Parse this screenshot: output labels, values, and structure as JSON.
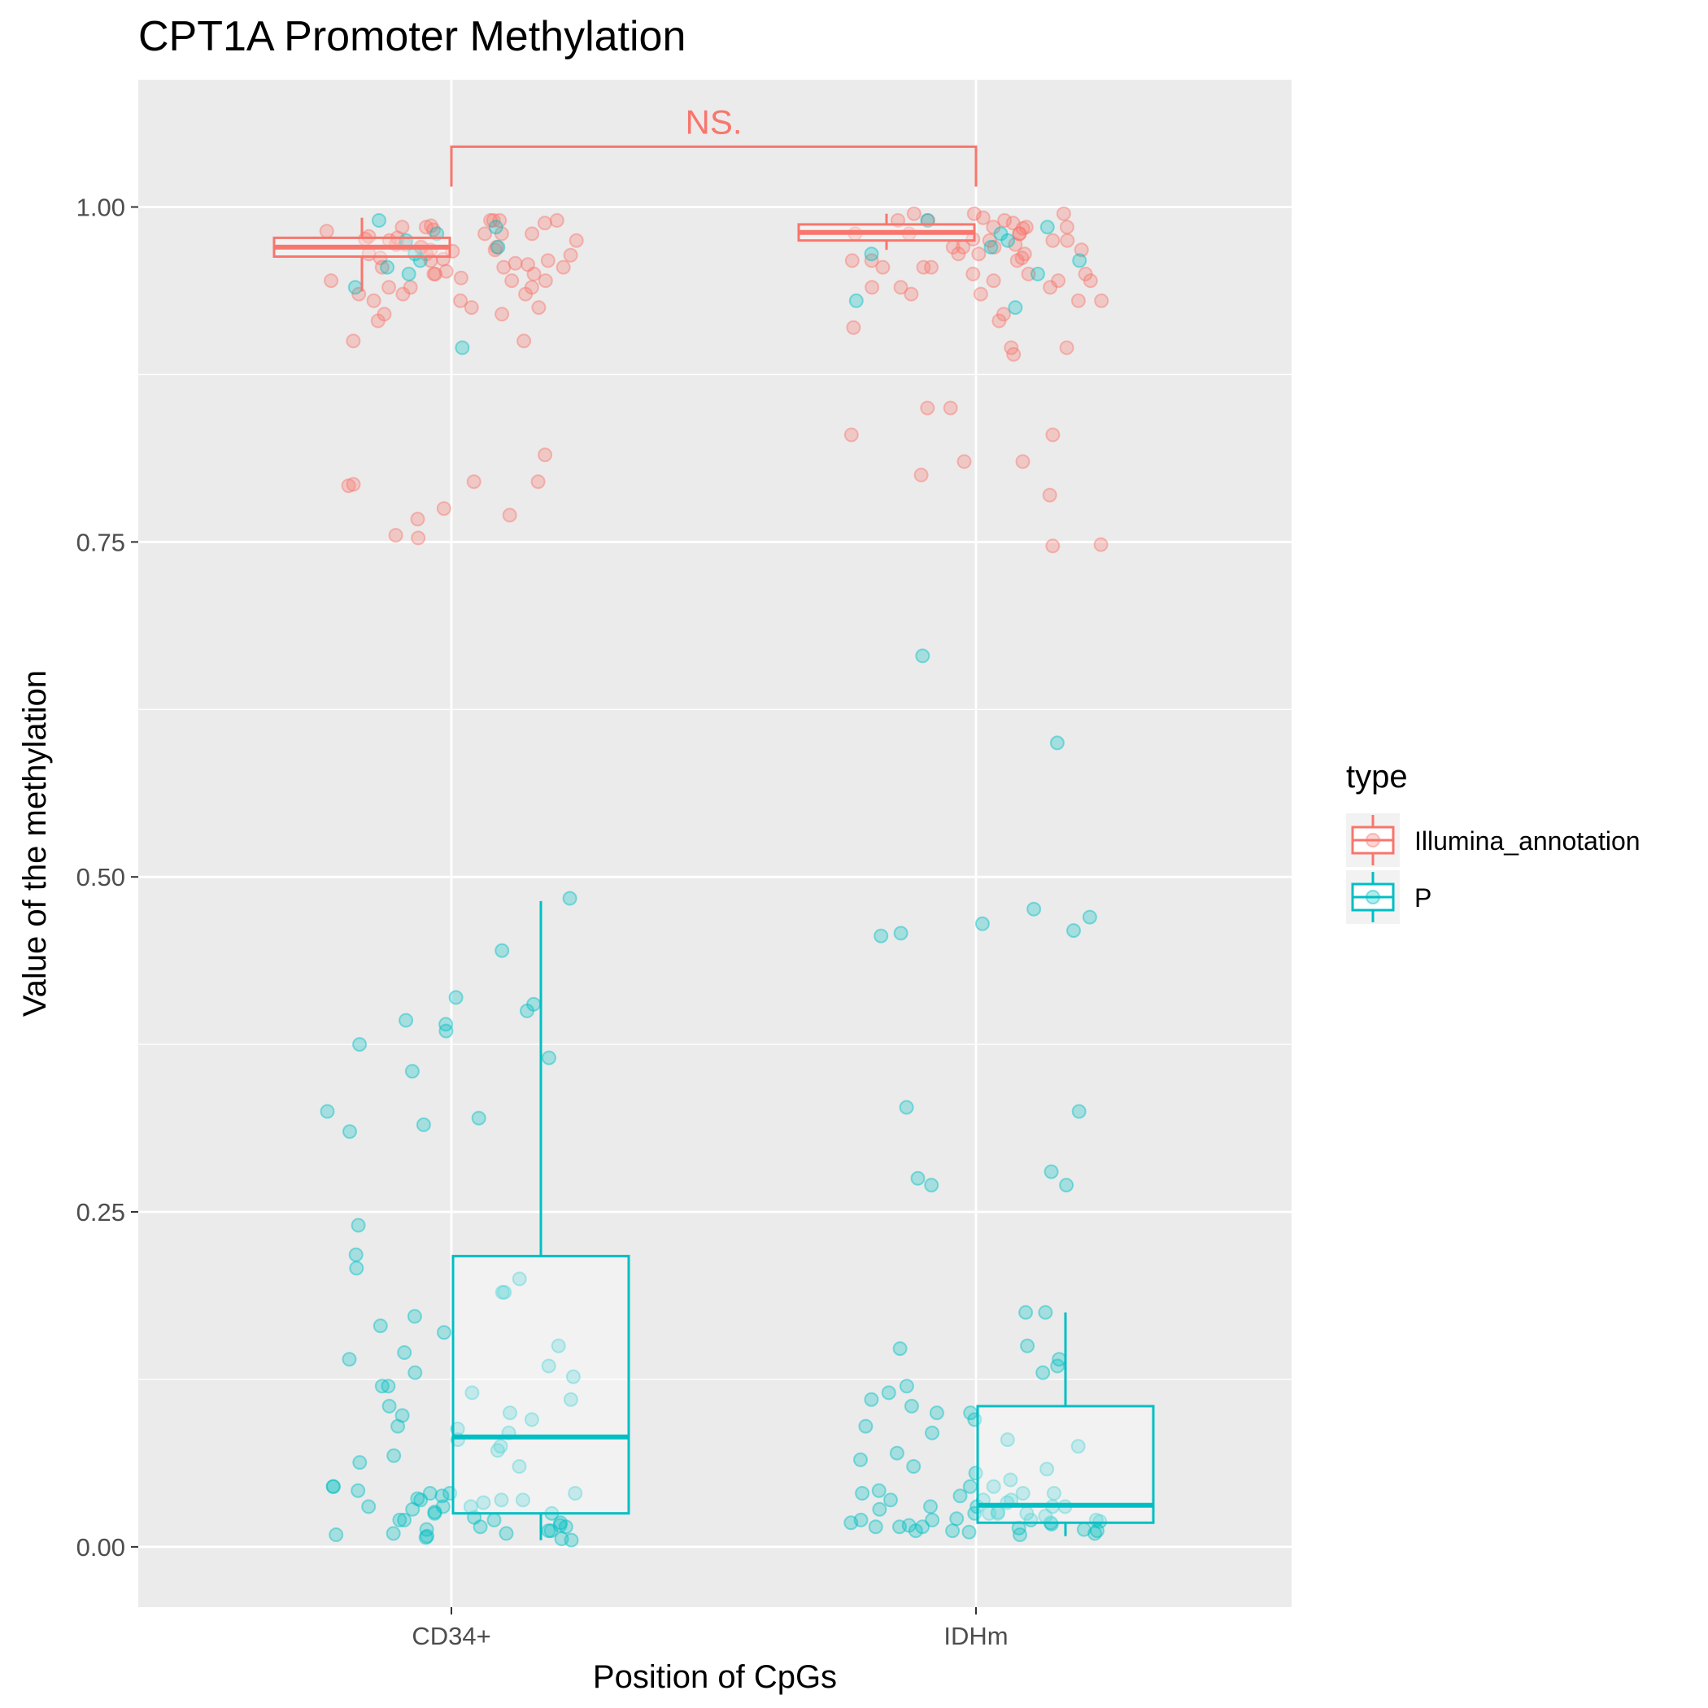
{
  "chart_data": {
    "type": "box",
    "title": "CPT1A Promoter Methylation",
    "xlabel": "Position of CpGs",
    "ylabel": "Value of the methylation",
    "categories": [
      "CD34+",
      "IDHm"
    ],
    "ylim": [
      -0.045,
      1.095
    ],
    "yticks": [
      0.0,
      0.25,
      0.5,
      0.75,
      1.0
    ],
    "ytick_labels": [
      "0.00",
      "0.25",
      "0.50",
      "0.75",
      "1.00"
    ],
    "grid": true,
    "legend": {
      "title": "type",
      "position": "right",
      "entries": [
        "Illumina_annotation",
        "P"
      ]
    },
    "colors": {
      "Illumina_annotation": "#F8766D",
      "P": "#00BFC4",
      "panel": "#EBEBEB",
      "grid": "#FFFFFF"
    },
    "series": [
      {
        "name": "Illumina_annotation",
        "boxes": [
          {
            "category": "CD34+",
            "q1": 0.963,
            "median": 0.97,
            "q3": 0.977,
            "whisker_low": 0.937,
            "whisker_high": 0.992
          },
          {
            "category": "IDHm",
            "q1": 0.975,
            "median": 0.981,
            "q3": 0.987,
            "whisker_low": 0.968,
            "whisker_high": 0.995
          }
        ],
        "points": {
          "CD34+": [
            0.99,
            0.985,
            0.98,
            0.975,
            0.97,
            0.968,
            0.965,
            0.96,
            0.955,
            0.95,
            0.945,
            0.94,
            0.935,
            0.93,
            0.925,
            0.92,
            0.915,
            0.9,
            0.815,
            0.795,
            0.793,
            0.775,
            0.77,
            0.767,
            0.755,
            0.753,
            0.99,
            0.988,
            0.986,
            0.983,
            0.98,
            0.978,
            0.976,
            0.972,
            0.97,
            0.967,
            0.964,
            0.961,
            0.958,
            0.955,
            0.95,
            0.945,
            0.94,
            0.935,
            0.93,
            0.925,
            0.92,
            0.9,
            0.795,
            0.792,
            0.99,
            0.985,
            0.98,
            0.975,
            0.97,
            0.965,
            0.96,
            0.955,
            0.95,
            0.945,
            0.94,
            0.935,
            0.99,
            0.982,
            0.977,
            0.972,
            0.968,
            0.962,
            0.957,
            0.952,
            0.947
          ],
          "IDHm": [
            0.995,
            0.99,
            0.985,
            0.98,
            0.975,
            0.97,
            0.965,
            0.96,
            0.955,
            0.95,
            0.945,
            0.94,
            0.935,
            0.93,
            0.92,
            0.91,
            0.895,
            0.89,
            0.85,
            0.83,
            0.81,
            0.8,
            0.785,
            0.748,
            0.995,
            0.99,
            0.985,
            0.98,
            0.975,
            0.97,
            0.965,
            0.96,
            0.95,
            0.94,
            0.935,
            0.81,
            0.747,
            0.99,
            0.985,
            0.98,
            0.975,
            0.97,
            0.965,
            0.96,
            0.955,
            0.95,
            0.945,
            0.94,
            0.93,
            0.915,
            0.895,
            0.85,
            0.83,
            0.995,
            0.992,
            0.988,
            0.984,
            0.98,
            0.976,
            0.972,
            0.968,
            0.962,
            0.955,
            0.945
          ]
        }
      },
      {
        "name": "P",
        "boxes": [
          {
            "category": "CD34+",
            "q1": 0.025,
            "median": 0.082,
            "q3": 0.217,
            "whisker_low": 0.005,
            "whisker_high": 0.482
          },
          {
            "category": "IDHm",
            "q1": 0.018,
            "median": 0.031,
            "q3": 0.105,
            "whisker_low": 0.008,
            "whisker_high": 0.175
          }
        ],
        "points": {
          "CD34+": [
            0.99,
            0.985,
            0.98,
            0.975,
            0.97,
            0.965,
            0.96,
            0.955,
            0.95,
            0.94,
            0.895,
            0.484,
            0.445,
            0.41,
            0.405,
            0.4,
            0.393,
            0.39,
            0.385,
            0.375,
            0.365,
            0.355,
            0.325,
            0.32,
            0.315,
            0.31,
            0.24,
            0.218,
            0.208,
            0.2,
            0.19,
            0.19,
            0.172,
            0.165,
            0.16,
            0.15,
            0.145,
            0.14,
            0.135,
            0.13,
            0.127,
            0.12,
            0.12,
            0.115,
            0.11,
            0.105,
            0.1,
            0.098,
            0.095,
            0.09,
            0.088,
            0.085,
            0.08,
            0.075,
            0.072,
            0.068,
            0.063,
            0.06,
            0.045,
            0.042,
            0.04,
            0.038,
            0.036,
            0.035,
            0.033,
            0.03,
            0.028,
            0.026,
            0.025,
            0.022,
            0.02,
            0.018,
            0.016,
            0.015,
            0.013,
            0.012,
            0.01,
            0.009,
            0.008,
            0.007,
            0.006,
            0.005,
            0.045,
            0.04,
            0.035,
            0.03,
            0.025,
            0.02,
            0.015,
            0.01,
            0.04,
            0.035,
            0.03,
            0.02,
            0.012
          ],
          "IDHm": [
            0.99,
            0.985,
            0.98,
            0.975,
            0.97,
            0.965,
            0.96,
            0.95,
            0.93,
            0.925,
            0.665,
            0.6,
            0.476,
            0.47,
            0.465,
            0.46,
            0.458,
            0.456,
            0.328,
            0.325,
            0.28,
            0.275,
            0.27,
            0.27,
            0.175,
            0.175,
            0.15,
            0.148,
            0.14,
            0.135,
            0.13,
            0.12,
            0.115,
            0.11,
            0.105,
            0.1,
            0.1,
            0.095,
            0.09,
            0.085,
            0.08,
            0.075,
            0.07,
            0.065,
            0.06,
            0.058,
            0.055,
            0.05,
            0.045,
            0.042,
            0.04,
            0.038,
            0.035,
            0.033,
            0.03,
            0.028,
            0.026,
            0.025,
            0.023,
            0.021,
            0.02,
            0.019,
            0.018,
            0.017,
            0.016,
            0.015,
            0.014,
            0.013,
            0.012,
            0.011,
            0.01,
            0.009,
            0.045,
            0.04,
            0.035,
            0.03,
            0.025,
            0.02,
            0.015,
            0.012,
            0.04,
            0.035,
            0.03,
            0.025,
            0.02,
            0.018,
            0.015,
            0.012,
            0.03,
            0.025,
            0.02
          ]
        }
      }
    ],
    "annotations": [
      {
        "text": "NS.",
        "from": "CD34+",
        "to": "IDHm",
        "y": 1.045,
        "color": "#F8766D"
      }
    ]
  }
}
